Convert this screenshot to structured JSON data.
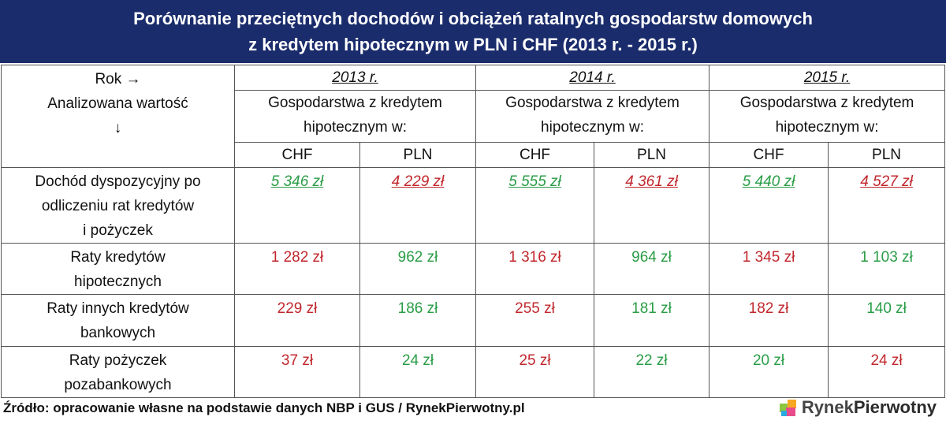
{
  "header": {
    "title_lines": [
      "Porównanie przeciętnych dochodów i obciążeń ratalnych gospodarstw domowych",
      "z kredytem hipotecznym w PLN i CHF (2013 r. - 2015 r.)"
    ]
  },
  "table": {
    "corner_lines": [
      "Rok →",
      "Analizowana wartość",
      "↓"
    ],
    "years": [
      "2013 r.",
      "2014 r.",
      "2015 r."
    ],
    "group_label_lines": [
      [
        "Gospodarstwa z kredytem",
        "hipotecznym w:"
      ],
      [
        "Gospodarstwa z kredytem",
        "hipotecznym w:"
      ],
      [
        "Gospodarstwa z kredytem",
        "hipotecznym w:"
      ]
    ],
    "currencies": [
      "CHF",
      "PLN",
      "CHF",
      "PLN",
      "CHF",
      "PLN"
    ],
    "rows": [
      {
        "label_lines": [
          "Dochód dyspozycyjny po",
          "odliczeniu rat kredytów",
          "i pożyczek"
        ],
        "underline": true,
        "cells": [
          {
            "text": "5 346 zł",
            "color": "#2a9d47"
          },
          {
            "text": "4 229 zł",
            "color": "#c1272d"
          },
          {
            "text": "5 555 zł",
            "color": "#2a9d47"
          },
          {
            "text": "4 361 zł",
            "color": "#c1272d"
          },
          {
            "text": "5 440 zł",
            "color": "#2a9d47"
          },
          {
            "text": "4 527 zł",
            "color": "#c1272d"
          }
        ]
      },
      {
        "label_lines": [
          "Raty kredytów",
          "hipotecznych"
        ],
        "underline": false,
        "cells": [
          {
            "text": "1 282 zł",
            "color": "#c1272d"
          },
          {
            "text": "962 zł",
            "color": "#2a9d47"
          },
          {
            "text": "1 316 zł",
            "color": "#c1272d"
          },
          {
            "text": "964 zł",
            "color": "#2a9d47"
          },
          {
            "text": "1 345 zł",
            "color": "#c1272d"
          },
          {
            "text": "1 103 zł",
            "color": "#2a9d47"
          }
        ]
      },
      {
        "label_lines": [
          "Raty innych kredytów",
          "bankowych"
        ],
        "underline": false,
        "cells": [
          {
            "text": "229 zł",
            "color": "#c1272d"
          },
          {
            "text": "186 zł",
            "color": "#2a9d47"
          },
          {
            "text": "255 zł",
            "color": "#c1272d"
          },
          {
            "text": "181 zł",
            "color": "#2a9d47"
          },
          {
            "text": "182 zł",
            "color": "#c1272d"
          },
          {
            "text": "140 zł",
            "color": "#2a9d47"
          }
        ]
      },
      {
        "label_lines": [
          "Raty pożyczek",
          "pozabankowych"
        ],
        "underline": false,
        "cells": [
          {
            "text": "37 zł",
            "color": "#c1272d"
          },
          {
            "text": "24 zł",
            "color": "#2a9d47"
          },
          {
            "text": "25 zł",
            "color": "#c1272d"
          },
          {
            "text": "22 zł",
            "color": "#2a9d47"
          },
          {
            "text": "20 zł",
            "color": "#2a9d47"
          },
          {
            "text": "24 zł",
            "color": "#c1272d"
          }
        ]
      }
    ]
  },
  "footer": {
    "source": "Źródło: opracowanie własne na podstawie danych NBP i GUS / RynekPierwotny.pl",
    "logo": [
      "Rynek",
      "Pierwotny"
    ]
  }
}
